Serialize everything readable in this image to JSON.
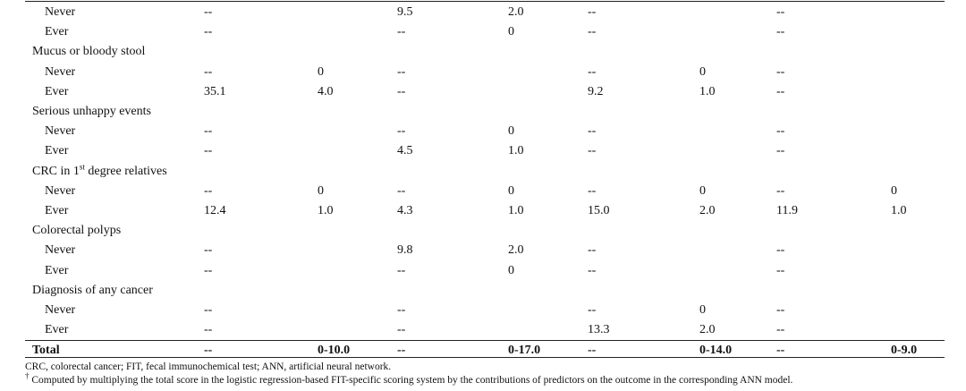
{
  "rows": [
    {
      "label": "Never",
      "sub": true,
      "cells": [
        "--",
        "",
        "9.5",
        "2.0",
        "--",
        "",
        "--",
        ""
      ]
    },
    {
      "label": "Ever",
      "sub": true,
      "cells": [
        "--",
        "",
        "--",
        "0",
        "--",
        "",
        "--",
        ""
      ]
    },
    {
      "label": "Mucus or bloody stool",
      "sub": false,
      "cells": [
        "",
        "",
        "",
        "",
        "",
        "",
        "",
        ""
      ]
    },
    {
      "label": "Never",
      "sub": true,
      "cells": [
        "--",
        "0",
        "--",
        "",
        "--",
        "0",
        "--",
        ""
      ]
    },
    {
      "label": "Ever",
      "sub": true,
      "cells": [
        "35.1",
        "4.0",
        "--",
        "",
        "9.2",
        "1.0",
        "--",
        ""
      ]
    },
    {
      "label": "Serious unhappy events",
      "sub": false,
      "cells": [
        "",
        "",
        "",
        "",
        "",
        "",
        "",
        ""
      ]
    },
    {
      "label": "Never",
      "sub": true,
      "cells": [
        "--",
        "",
        "--",
        "0",
        "--",
        "",
        "--",
        ""
      ]
    },
    {
      "label": "Ever",
      "sub": true,
      "cells": [
        "--",
        "",
        "4.5",
        "1.0",
        "--",
        "",
        "--",
        ""
      ]
    },
    {
      "label": "CRC in 1",
      "label_sup": "st",
      "label_after": " degree relatives",
      "sub": false,
      "cells": [
        "",
        "",
        "",
        "",
        "",
        "",
        "",
        ""
      ]
    },
    {
      "label": "Never",
      "sub": true,
      "cells": [
        "--",
        "0",
        "--",
        "0",
        "--",
        "0",
        "--",
        "0"
      ]
    },
    {
      "label": "Ever",
      "sub": true,
      "cells": [
        "12.4",
        "1.0",
        "4.3",
        "1.0",
        "15.0",
        "2.0",
        "11.9",
        "1.0"
      ]
    },
    {
      "label": "Colorectal polyps",
      "sub": false,
      "cells": [
        "",
        "",
        "",
        "",
        "",
        "",
        "",
        ""
      ]
    },
    {
      "label": "Never",
      "sub": true,
      "cells": [
        "--",
        "",
        "9.8",
        "2.0",
        "--",
        "",
        "--",
        ""
      ]
    },
    {
      "label": "Ever",
      "sub": true,
      "cells": [
        "--",
        "",
        "--",
        "0",
        "--",
        "",
        "--",
        ""
      ]
    },
    {
      "label": "Diagnosis of any cancer",
      "sub": false,
      "cells": [
        "",
        "",
        "",
        "",
        "",
        "",
        "",
        ""
      ]
    },
    {
      "label": "Never",
      "sub": true,
      "cells": [
        "--",
        "",
        "--",
        "",
        "--",
        "0",
        "--",
        ""
      ]
    },
    {
      "label": "Ever",
      "sub": true,
      "cells": [
        "--",
        "",
        "--",
        "",
        "13.3",
        "2.0",
        "--",
        ""
      ]
    }
  ],
  "total": {
    "label": "Total",
    "cells": [
      "--",
      "0-10.0",
      "--",
      "0-17.0",
      "--",
      "0-14.0",
      "--",
      "0-9.0"
    ]
  },
  "footnotes": {
    "abbrev": "CRC, colorectal cancer; FIT, fecal immunochemical test; ANN, artificial neural network.",
    "dagger_mark": "†",
    "dagger_text": " Computed by multiplying the total score in the logistic regression-based FIT-specific scoring system by the contributions of predictors on the outcome in the corresponding ANN model."
  }
}
